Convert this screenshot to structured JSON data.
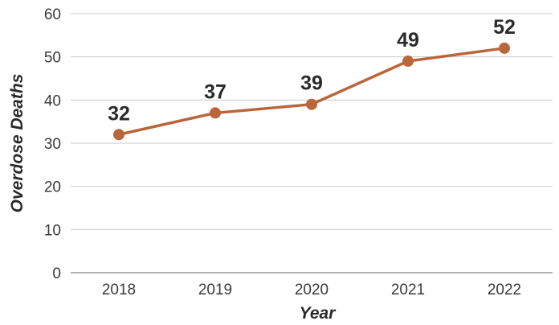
{
  "chart_data": {
    "type": "line",
    "x": [
      "2018",
      "2019",
      "2020",
      "2021",
      "2022"
    ],
    "series": [
      {
        "values": [
          32,
          37,
          39,
          49,
          52
        ],
        "color": "#b9673a"
      }
    ],
    "data_labels": [
      "32",
      "37",
      "39",
      "49",
      "52"
    ],
    "xlabel": "Year",
    "ylabel": "Overdose Deaths",
    "ylim": [
      0,
      60
    ],
    "yticks": [
      0,
      10,
      20,
      30,
      40,
      50,
      60
    ],
    "ytick_labels": [
      "0",
      "10",
      "20",
      "30",
      "40",
      "50",
      "60"
    ],
    "grid": "horizontal",
    "legend": "none",
    "gridline_color": "#c8c8c8",
    "axis_color": "#9a9a9a"
  }
}
